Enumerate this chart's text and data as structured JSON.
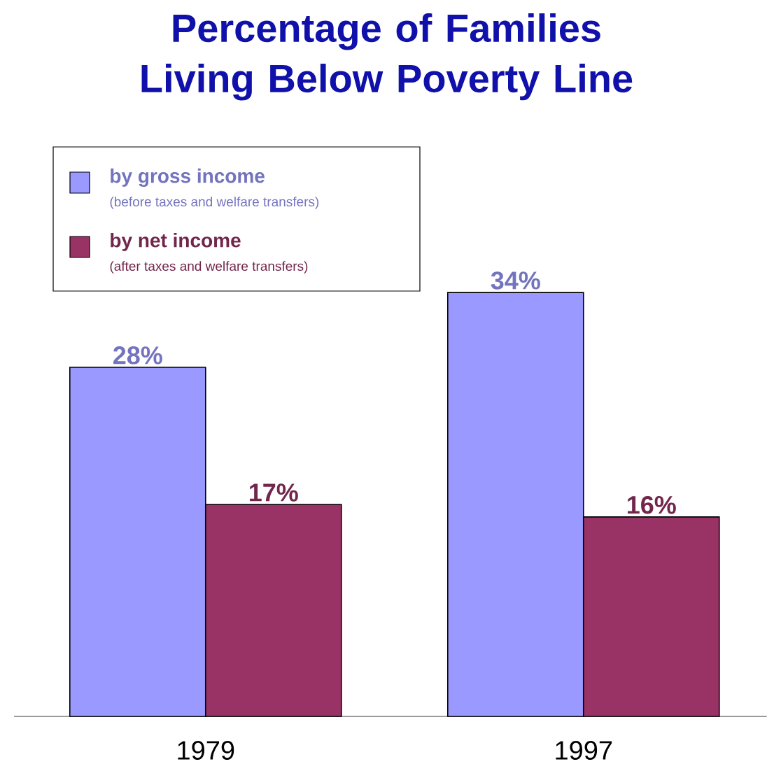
{
  "chart_data": {
    "type": "bar",
    "title": "Percentage of Families Living Below Poverty Line",
    "categories": [
      "1979",
      "1997"
    ],
    "series": [
      {
        "name": "by gross income",
        "color": "#9999ff",
        "values": [
          28,
          34
        ],
        "value_labels": [
          "28%",
          "34%"
        ]
      },
      {
        "name": "by net income",
        "color": "#993366",
        "values": [
          17,
          16
        ],
        "value_labels": [
          "17%",
          "16%"
        ]
      }
    ],
    "annotations": [
      "(before taxes and welfare transfers)",
      "(after taxes and welfare transfers)"
    ],
    "legend": "top left"
  }
}
